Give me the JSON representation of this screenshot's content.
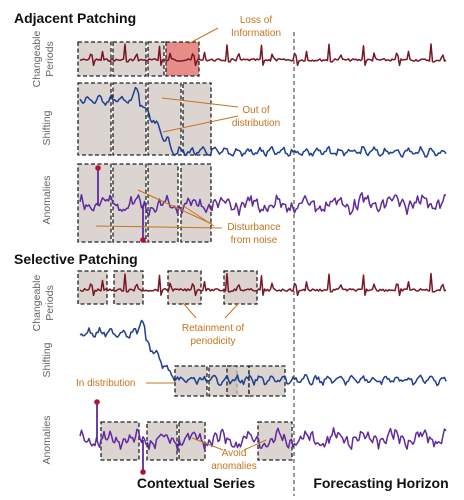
{
  "sections": {
    "adjacent": "Adjacent Patching",
    "selective": "Selective Patching"
  },
  "rows": {
    "changeable_line1": "Changeable",
    "changeable_line2": "Periods",
    "shifting": "Shifting",
    "anomalies": "Anomalies"
  },
  "annotations": {
    "loss_line1": "Loss of",
    "loss_line2": "Information",
    "ood_line1": "Out of",
    "ood_line2": "distribution",
    "noise_line1": "Disturbance",
    "noise_line2": "from noise",
    "retain_line1": "Retainment of",
    "retain_line2": "periodicity",
    "indist": "In distribution",
    "avoid_line1": "Avoid",
    "avoid_line2": "anomalies"
  },
  "bottom": {
    "contextual": "Contextual Series",
    "forecasting": "Forecasting Horizon"
  },
  "colors": {
    "periodic": "#7a1526",
    "shifting": "#1f3f8f",
    "anomalies": "#5e2a9e",
    "annotation": "#c7731e",
    "patch": "#cfc6c0",
    "patch_highlight": "#e0706c",
    "spike_marker": "#b0123c"
  }
}
